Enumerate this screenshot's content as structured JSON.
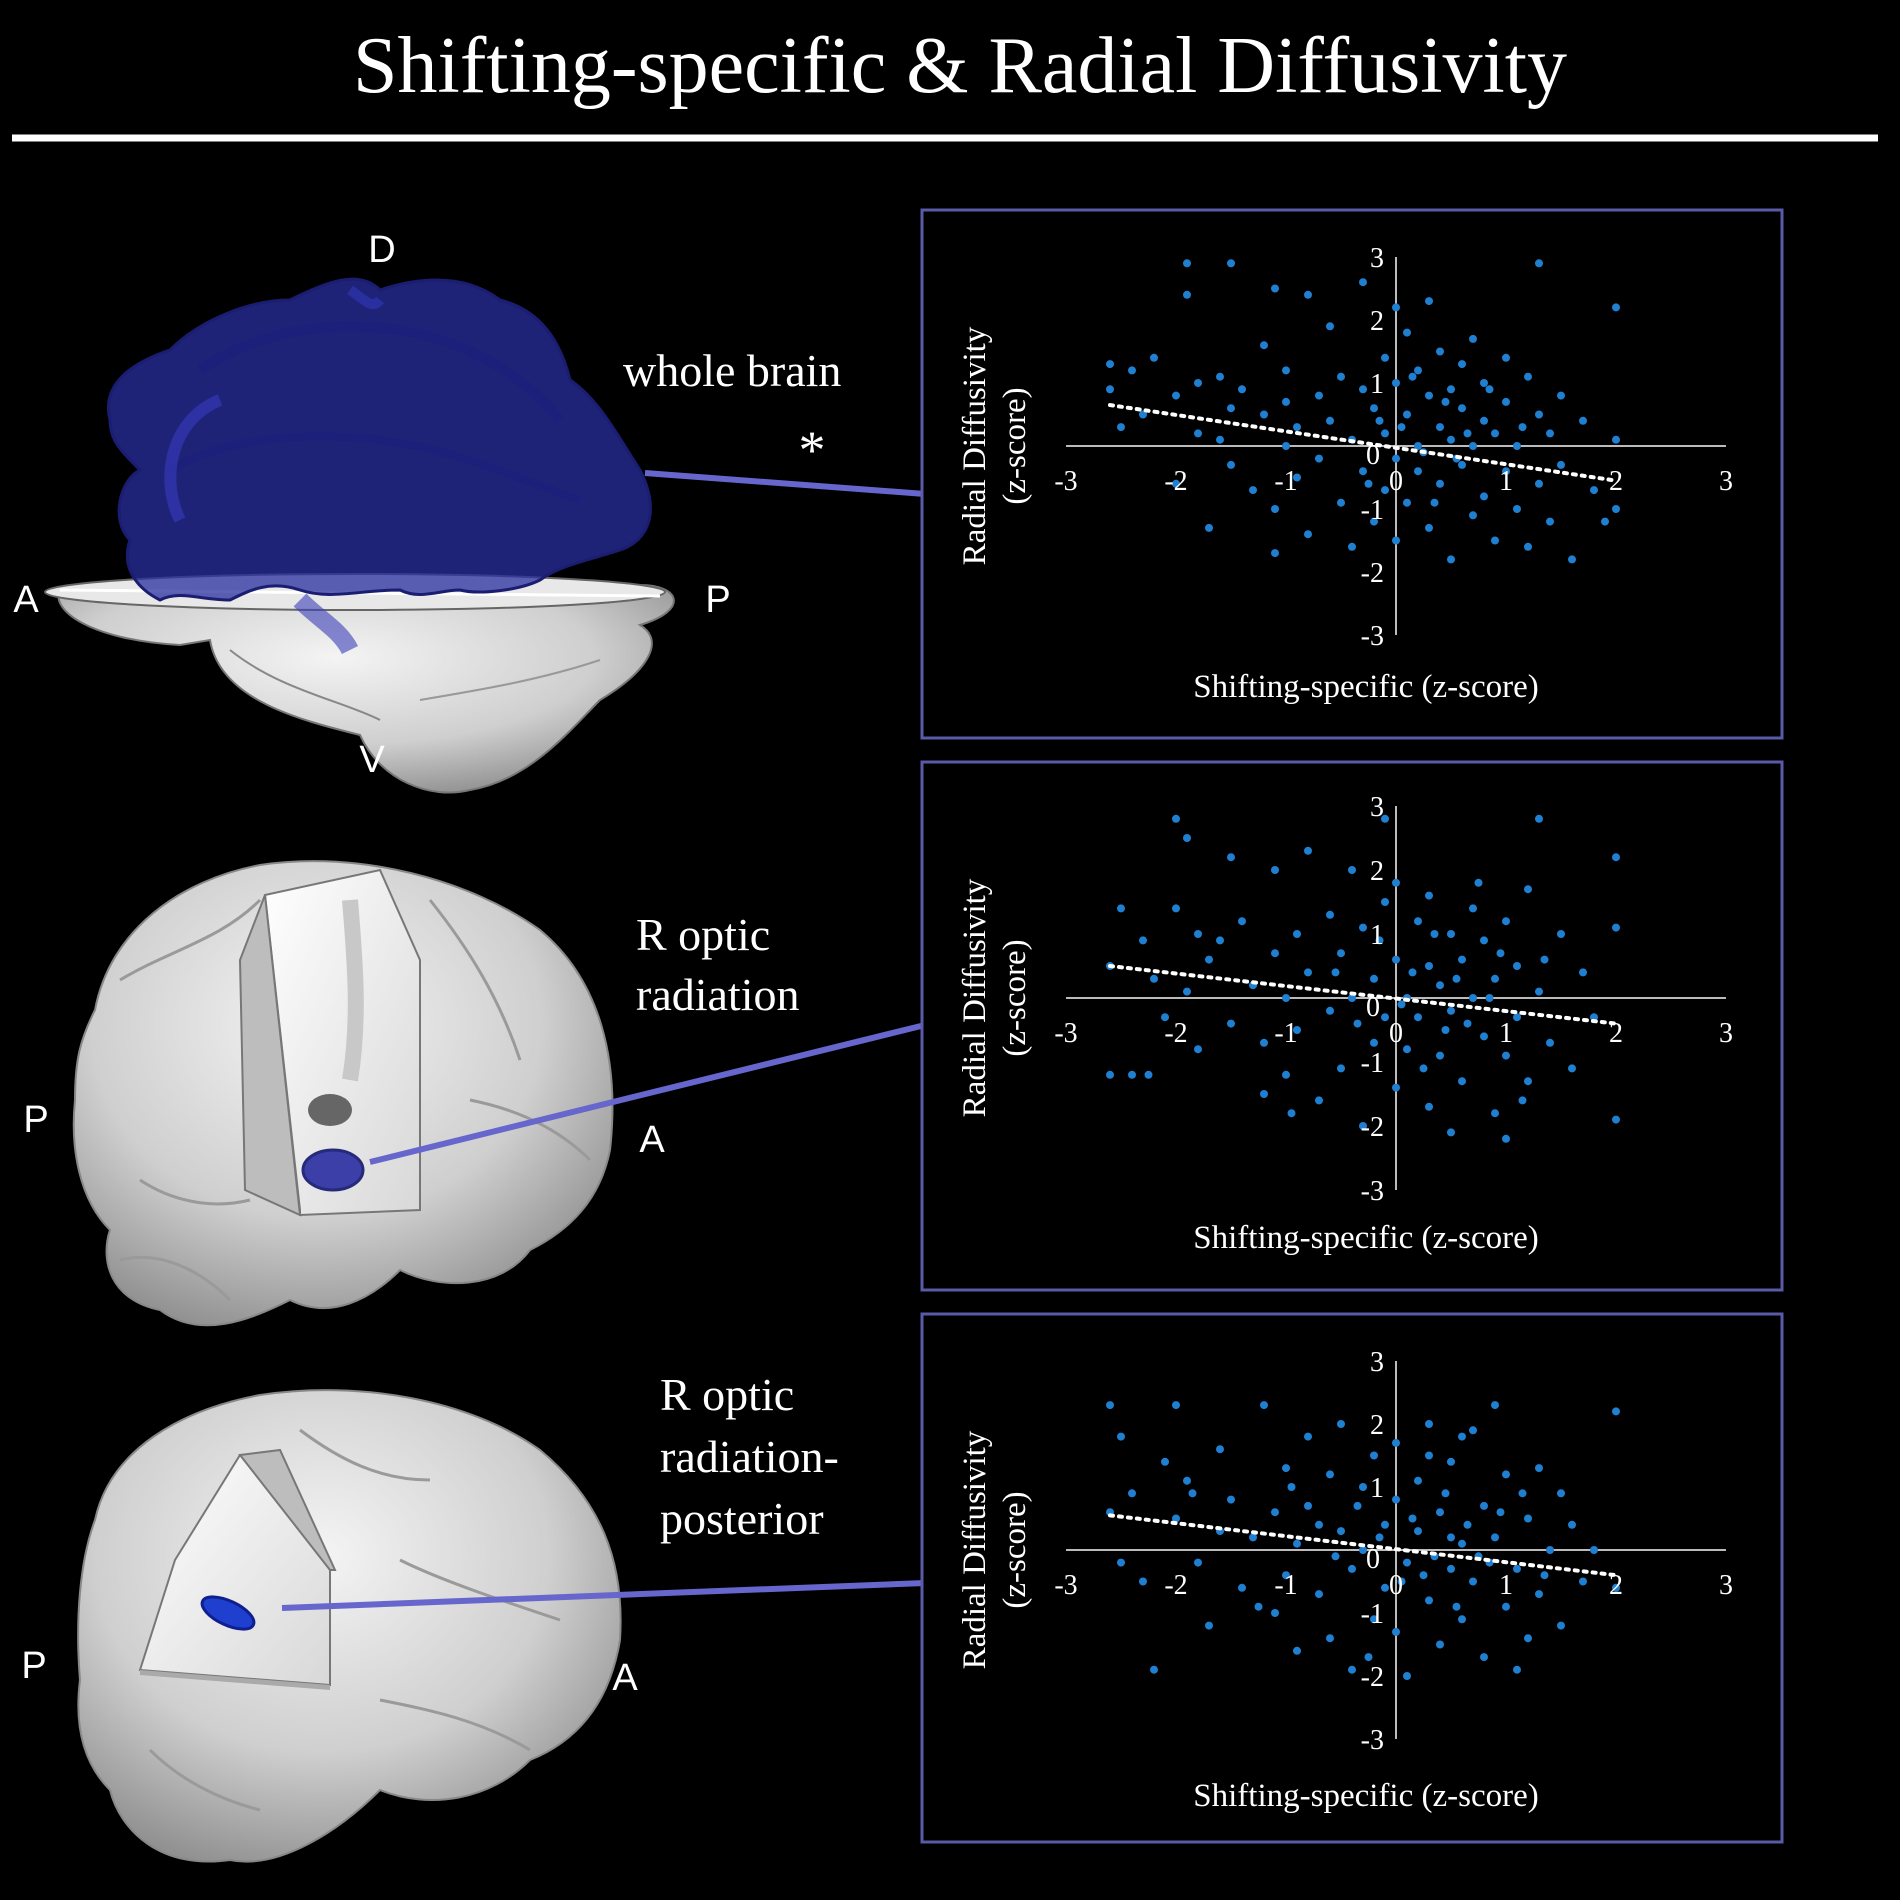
{
  "title": "Shifting-specific & Radial Diffusivity",
  "colors": {
    "background": "#000000",
    "connector": "#6666cc",
    "panel_border": "#5a5aa8",
    "point": "#1f7fd1",
    "tract": "#2a2fa0",
    "brain": "#d6d6d6"
  },
  "brains": [
    {
      "label_lines": [
        "whole brain"
      ],
      "significance": "*",
      "orientation": {
        "top": "D",
        "bottom": "V",
        "left": "A",
        "right": "P"
      },
      "icon": "brain-sagittal-whole-tract-icon"
    },
    {
      "label_lines": [
        "R optic",
        "radiation"
      ],
      "orientation": {
        "left": "P",
        "right": "A"
      },
      "icon": "brain-3d-cutaway-icon"
    },
    {
      "label_lines": [
        "R optic",
        "radiation-",
        "posterior"
      ],
      "orientation": {
        "left": "P",
        "right": "A"
      },
      "icon": "brain-3d-cutaway-posterior-icon"
    }
  ],
  "chart_data": [
    {
      "type": "scatter",
      "region": "whole brain",
      "xlabel": "Shifting-specific (z-score)",
      "ylabel": "Radial Diffusivity",
      "ylabel2": "(z-score)",
      "xlim": [
        -3,
        3
      ],
      "ylim": [
        -3,
        3
      ],
      "xticks": [
        "-3",
        "-2",
        "-1",
        "0",
        "1",
        "2",
        "3"
      ],
      "yticks": [
        "-3",
        "-2",
        "-1",
        "0",
        "1",
        "2",
        "3"
      ],
      "trendline": {
        "x": [
          -2.6,
          2.0
        ],
        "y": [
          0.65,
          -0.55
        ],
        "style": "dotted"
      },
      "points": [
        [
          -2.6,
          1.3
        ],
        [
          -2.6,
          0.9
        ],
        [
          -2.5,
          0.3
        ],
        [
          -2.4,
          1.2
        ],
        [
          -2.3,
          0.5
        ],
        [
          -2.2,
          1.4
        ],
        [
          -2.0,
          0.8
        ],
        [
          -2.0,
          -0.6
        ],
        [
          -1.9,
          2.9
        ],
        [
          -1.9,
          2.4
        ],
        [
          -1.8,
          1.0
        ],
        [
          -1.8,
          0.2
        ],
        [
          -1.7,
          -1.3
        ],
        [
          -1.6,
          1.1
        ],
        [
          -1.5,
          0.6
        ],
        [
          -1.5,
          -0.3
        ],
        [
          -1.5,
          2.9
        ],
        [
          -1.4,
          0.9
        ],
        [
          -1.3,
          -0.7
        ],
        [
          -1.2,
          0.5
        ],
        [
          -1.2,
          1.6
        ],
        [
          -1.1,
          2.5
        ],
        [
          -1.1,
          -1.0
        ],
        [
          -1.1,
          -1.7
        ],
        [
          -1.0,
          0.0
        ],
        [
          -1.0,
          0.7
        ],
        [
          -1.0,
          1.2
        ],
        [
          -0.9,
          -0.5
        ],
        [
          -0.9,
          0.3
        ],
        [
          -0.8,
          2.4
        ],
        [
          -0.8,
          -1.4
        ],
        [
          -0.7,
          0.8
        ],
        [
          -0.7,
          -0.2
        ],
        [
          -0.6,
          1.9
        ],
        [
          -0.6,
          0.4
        ],
        [
          -0.5,
          -0.9
        ],
        [
          -0.5,
          1.1
        ],
        [
          -0.4,
          0.1
        ],
        [
          -0.4,
          -1.6
        ],
        [
          -0.3,
          0.9
        ],
        [
          -0.3,
          2.6
        ],
        [
          -0.3,
          -0.4
        ],
        [
          -0.2,
          0.6
        ],
        [
          -0.2,
          -1.2
        ],
        [
          -0.1,
          1.4
        ],
        [
          -0.1,
          0.2
        ],
        [
          -0.1,
          -0.7
        ],
        [
          0.0,
          2.2
        ],
        [
          0.0,
          1.0
        ],
        [
          0.0,
          -0.2
        ],
        [
          0.0,
          -1.5
        ],
        [
          0.1,
          0.5
        ],
        [
          0.1,
          -0.9
        ],
        [
          0.1,
          1.8
        ],
        [
          0.2,
          0.0
        ],
        [
          0.2,
          1.2
        ],
        [
          0.2,
          -0.4
        ],
        [
          0.3,
          0.8
        ],
        [
          0.3,
          -1.3
        ],
        [
          0.3,
          2.3
        ],
        [
          0.4,
          0.3
        ],
        [
          0.4,
          1.5
        ],
        [
          0.4,
          -0.6
        ],
        [
          0.5,
          0.9
        ],
        [
          0.5,
          -1.8
        ],
        [
          0.5,
          0.1
        ],
        [
          0.6,
          1.3
        ],
        [
          0.6,
          -0.3
        ],
        [
          0.6,
          0.6
        ],
        [
          0.7,
          -1.1
        ],
        [
          0.7,
          1.7
        ],
        [
          0.7,
          0.0
        ],
        [
          0.8,
          0.4
        ],
        [
          0.8,
          -0.8
        ],
        [
          0.8,
          1.0
        ],
        [
          0.9,
          -1.5
        ],
        [
          0.9,
          0.2
        ],
        [
          1.0,
          1.4
        ],
        [
          1.0,
          -0.4
        ],
        [
          1.0,
          0.7
        ],
        [
          1.1,
          -1.0
        ],
        [
          1.1,
          0.0
        ],
        [
          1.2,
          1.1
        ],
        [
          1.2,
          -1.6
        ],
        [
          1.3,
          0.5
        ],
        [
          1.3,
          -0.6
        ],
        [
          1.3,
          2.9
        ],
        [
          1.4,
          0.2
        ],
        [
          1.4,
          -1.2
        ],
        [
          1.5,
          0.8
        ],
        [
          1.5,
          -0.3
        ],
        [
          1.6,
          -1.8
        ],
        [
          1.7,
          0.4
        ],
        [
          1.8,
          -0.7
        ],
        [
          1.9,
          -1.2
        ],
        [
          2.0,
          2.2
        ],
        [
          2.0,
          0.1
        ],
        [
          2.0,
          -1.0
        ],
        [
          -1.6,
          0.1
        ],
        [
          0.25,
          -0.1
        ],
        [
          0.45,
          0.7
        ],
        [
          0.15,
          1.1
        ],
        [
          -0.15,
          0.4
        ],
        [
          0.55,
          -0.2
        ],
        [
          0.65,
          0.2
        ],
        [
          0.35,
          -0.9
        ],
        [
          0.85,
          0.9
        ],
        [
          0.05,
          0.3
        ],
        [
          -0.25,
          -0.6
        ],
        [
          1.15,
          0.3
        ]
      ]
    },
    {
      "type": "scatter",
      "region": "R optic radiation",
      "xlabel": "Shifting-specific (z-score)",
      "ylabel": "Radial Diffusivity",
      "ylabel2": "(z-score)",
      "xlim": [
        -3,
        3
      ],
      "ylim": [
        -3,
        3
      ],
      "xticks": [
        "-3",
        "-2",
        "-1",
        "0",
        "1",
        "2",
        "3"
      ],
      "yticks": [
        "-3",
        "-2",
        "-1",
        "0",
        "1",
        "2",
        "3"
      ],
      "trendline": {
        "x": [
          -2.6,
          2.0
        ],
        "y": [
          0.5,
          -0.4
        ],
        "style": "dotted"
      },
      "points": [
        [
          -2.6,
          -1.2
        ],
        [
          -2.6,
          0.5
        ],
        [
          -2.5,
          1.4
        ],
        [
          -2.4,
          -1.2
        ],
        [
          -2.3,
          0.9
        ],
        [
          -2.2,
          0.3
        ],
        [
          -2.1,
          -0.3
        ],
        [
          -2.0,
          1.4
        ],
        [
          -2.0,
          2.8
        ],
        [
          -1.9,
          2.5
        ],
        [
          -1.9,
          0.1
        ],
        [
          -1.8,
          1.0
        ],
        [
          -1.8,
          -0.8
        ],
        [
          -1.7,
          0.6
        ],
        [
          -1.5,
          -0.4
        ],
        [
          -1.5,
          2.2
        ],
        [
          -1.4,
          1.2
        ],
        [
          -1.3,
          0.2
        ],
        [
          -1.2,
          -1.5
        ],
        [
          -1.1,
          2.0
        ],
        [
          -1.1,
          0.7
        ],
        [
          -1.0,
          -1.2
        ],
        [
          -1.0,
          0.0
        ],
        [
          -0.9,
          1.0
        ],
        [
          -0.9,
          -0.5
        ],
        [
          -0.8,
          2.3
        ],
        [
          -0.8,
          0.4
        ],
        [
          -0.7,
          -1.6
        ],
        [
          -0.6,
          1.3
        ],
        [
          -0.6,
          -0.2
        ],
        [
          -0.5,
          0.7
        ],
        [
          -0.5,
          -1.1
        ],
        [
          -0.4,
          2.0
        ],
        [
          -0.4,
          0.0
        ],
        [
          -0.3,
          -2.0
        ],
        [
          -0.3,
          1.1
        ],
        [
          -0.2,
          0.3
        ],
        [
          -0.2,
          -0.7
        ],
        [
          -0.1,
          2.8
        ],
        [
          -0.1,
          1.5
        ],
        [
          -0.1,
          -0.3
        ],
        [
          0.0,
          0.6
        ],
        [
          0.0,
          -1.4
        ],
        [
          0.0,
          1.8
        ],
        [
          0.1,
          0.0
        ],
        [
          0.1,
          -0.8
        ],
        [
          0.2,
          1.2
        ],
        [
          0.2,
          -0.3
        ],
        [
          0.3,
          0.5
        ],
        [
          0.3,
          -1.7
        ],
        [
          0.3,
          1.6
        ],
        [
          0.4,
          0.2
        ],
        [
          0.4,
          -0.9
        ],
        [
          0.5,
          1.0
        ],
        [
          0.5,
          -0.2
        ],
        [
          0.5,
          -2.1
        ],
        [
          0.6,
          0.6
        ],
        [
          0.6,
          -1.3
        ],
        [
          0.7,
          1.4
        ],
        [
          0.7,
          0.0
        ],
        [
          0.8,
          -0.6
        ],
        [
          0.8,
          0.9
        ],
        [
          0.9,
          -1.8
        ],
        [
          0.9,
          0.3
        ],
        [
          1.0,
          1.2
        ],
        [
          1.0,
          -0.9
        ],
        [
          1.0,
          -2.2
        ],
        [
          1.1,
          0.5
        ],
        [
          1.1,
          -0.3
        ],
        [
          1.2,
          1.7
        ],
        [
          1.2,
          -1.3
        ],
        [
          1.3,
          2.8
        ],
        [
          1.3,
          0.1
        ],
        [
          1.4,
          -0.7
        ],
        [
          1.5,
          1.0
        ],
        [
          1.6,
          -1.1
        ],
        [
          1.7,
          0.4
        ],
        [
          1.8,
          -0.3
        ],
        [
          2.0,
          2.2
        ],
        [
          2.0,
          1.1
        ],
        [
          2.0,
          -1.9
        ],
        [
          -1.6,
          0.9
        ],
        [
          0.15,
          0.4
        ],
        [
          0.35,
          1.0
        ],
        [
          0.45,
          -0.5
        ],
        [
          0.55,
          0.3
        ],
        [
          0.25,
          -1.1
        ],
        [
          0.65,
          -0.4
        ],
        [
          -0.15,
          0.9
        ],
        [
          0.85,
          0.0
        ],
        [
          -0.35,
          -0.4
        ],
        [
          0.05,
          -0.1
        ],
        [
          1.15,
          -1.6
        ],
        [
          0.75,
          1.8
        ],
        [
          -0.55,
          0.4
        ],
        [
          1.35,
          0.6
        ],
        [
          -1.2,
          -0.7
        ],
        [
          -0.95,
          -1.8
        ],
        [
          -2.25,
          -1.2
        ],
        [
          0.95,
          0.7
        ]
      ]
    },
    {
      "type": "scatter",
      "region": "R optic radiation-posterior",
      "xlabel": "Shifting-specific (z-score)",
      "ylabel": "Radial Diffusivity",
      "ylabel2": "(z-score)",
      "xlim": [
        -3,
        3
      ],
      "ylim": [
        -3,
        3
      ],
      "xticks": [
        "-3",
        "-2",
        "-1",
        "0",
        "1",
        "2",
        "3"
      ],
      "yticks": [
        "-3",
        "-2",
        "-1",
        "0",
        "1",
        "2",
        "3"
      ],
      "trendline": {
        "x": [
          -2.6,
          2.0
        ],
        "y": [
          0.55,
          -0.4
        ],
        "style": "dotted"
      },
      "points": [
        [
          -2.6,
          2.3
        ],
        [
          -2.6,
          0.6
        ],
        [
          -2.5,
          1.8
        ],
        [
          -2.5,
          -0.2
        ],
        [
          -2.4,
          0.9
        ],
        [
          -2.3,
          -0.5
        ],
        [
          -2.2,
          -1.9
        ],
        [
          -2.1,
          1.4
        ],
        [
          -2.0,
          2.3
        ],
        [
          -2.0,
          0.5
        ],
        [
          -1.9,
          1.1
        ],
        [
          -1.8,
          -0.2
        ],
        [
          -1.7,
          -1.2
        ],
        [
          -1.6,
          1.6
        ],
        [
          -1.5,
          0.8
        ],
        [
          -1.4,
          -0.6
        ],
        [
          -1.3,
          0.2
        ],
        [
          -1.2,
          2.3
        ],
        [
          -1.1,
          -1.0
        ],
        [
          -1.1,
          0.6
        ],
        [
          -1.0,
          1.3
        ],
        [
          -1.0,
          -0.4
        ],
        [
          -0.9,
          0.1
        ],
        [
          -0.9,
          -1.6
        ],
        [
          -0.8,
          1.8
        ],
        [
          -0.8,
          0.7
        ],
        [
          -0.7,
          -0.7
        ],
        [
          -0.6,
          1.2
        ],
        [
          -0.6,
          -1.4
        ],
        [
          -0.5,
          0.3
        ],
        [
          -0.5,
          2.0
        ],
        [
          -0.4,
          -0.3
        ],
        [
          -0.4,
          -1.9
        ],
        [
          -0.3,
          1.0
        ],
        [
          -0.3,
          0.0
        ],
        [
          -0.2,
          -1.1
        ],
        [
          -0.2,
          1.5
        ],
        [
          -0.1,
          0.4
        ],
        [
          -0.1,
          -0.6
        ],
        [
          0.0,
          1.7
        ],
        [
          0.0,
          -1.3
        ],
        [
          0.0,
          0.8
        ],
        [
          0.1,
          -0.2
        ],
        [
          0.1,
          -2.0
        ],
        [
          0.2,
          1.1
        ],
        [
          0.2,
          0.3
        ],
        [
          0.3,
          -0.8
        ],
        [
          0.3,
          2.0
        ],
        [
          0.4,
          0.6
        ],
        [
          0.4,
          -1.5
        ],
        [
          0.5,
          1.4
        ],
        [
          0.5,
          -0.3
        ],
        [
          0.6,
          0.1
        ],
        [
          0.6,
          -1.1
        ],
        [
          0.7,
          1.9
        ],
        [
          0.7,
          -0.5
        ],
        [
          0.8,
          0.7
        ],
        [
          0.8,
          -1.7
        ],
        [
          0.9,
          0.2
        ],
        [
          0.9,
          2.3
        ],
        [
          1.0,
          -0.9
        ],
        [
          1.0,
          1.2
        ],
        [
          1.1,
          -0.3
        ],
        [
          1.1,
          -1.9
        ],
        [
          1.2,
          0.5
        ],
        [
          1.3,
          1.3
        ],
        [
          1.3,
          -0.7
        ],
        [
          1.4,
          0.0
        ],
        [
          1.5,
          0.9
        ],
        [
          1.5,
          -1.2
        ],
        [
          1.6,
          0.4
        ],
        [
          1.8,
          0.0
        ],
        [
          2.0,
          2.2
        ],
        [
          2.0,
          -0.6
        ],
        [
          -1.85,
          0.9
        ],
        [
          0.15,
          0.5
        ],
        [
          0.35,
          -0.1
        ],
        [
          0.45,
          0.9
        ],
        [
          0.55,
          -0.9
        ],
        [
          0.25,
          -0.4
        ],
        [
          0.65,
          0.4
        ],
        [
          -0.15,
          0.2
        ],
        [
          0.85,
          -0.2
        ],
        [
          -0.35,
          0.7
        ],
        [
          0.05,
          -0.5
        ],
        [
          1.15,
          0.9
        ],
        [
          0.75,
          -0.1
        ],
        [
          -0.55,
          -0.1
        ],
        [
          1.35,
          -0.4
        ],
        [
          -1.25,
          -0.9
        ],
        [
          -0.95,
          1.0
        ],
        [
          0.95,
          0.6
        ],
        [
          1.7,
          -0.5
        ],
        [
          -1.6,
          0.3
        ],
        [
          0.6,
          1.8
        ],
        [
          -0.7,
          0.4
        ],
        [
          1.2,
          -1.4
        ],
        [
          0.3,
          1.5
        ],
        [
          -0.25,
          -1.7
        ],
        [
          0.5,
          0.2
        ]
      ]
    }
  ]
}
